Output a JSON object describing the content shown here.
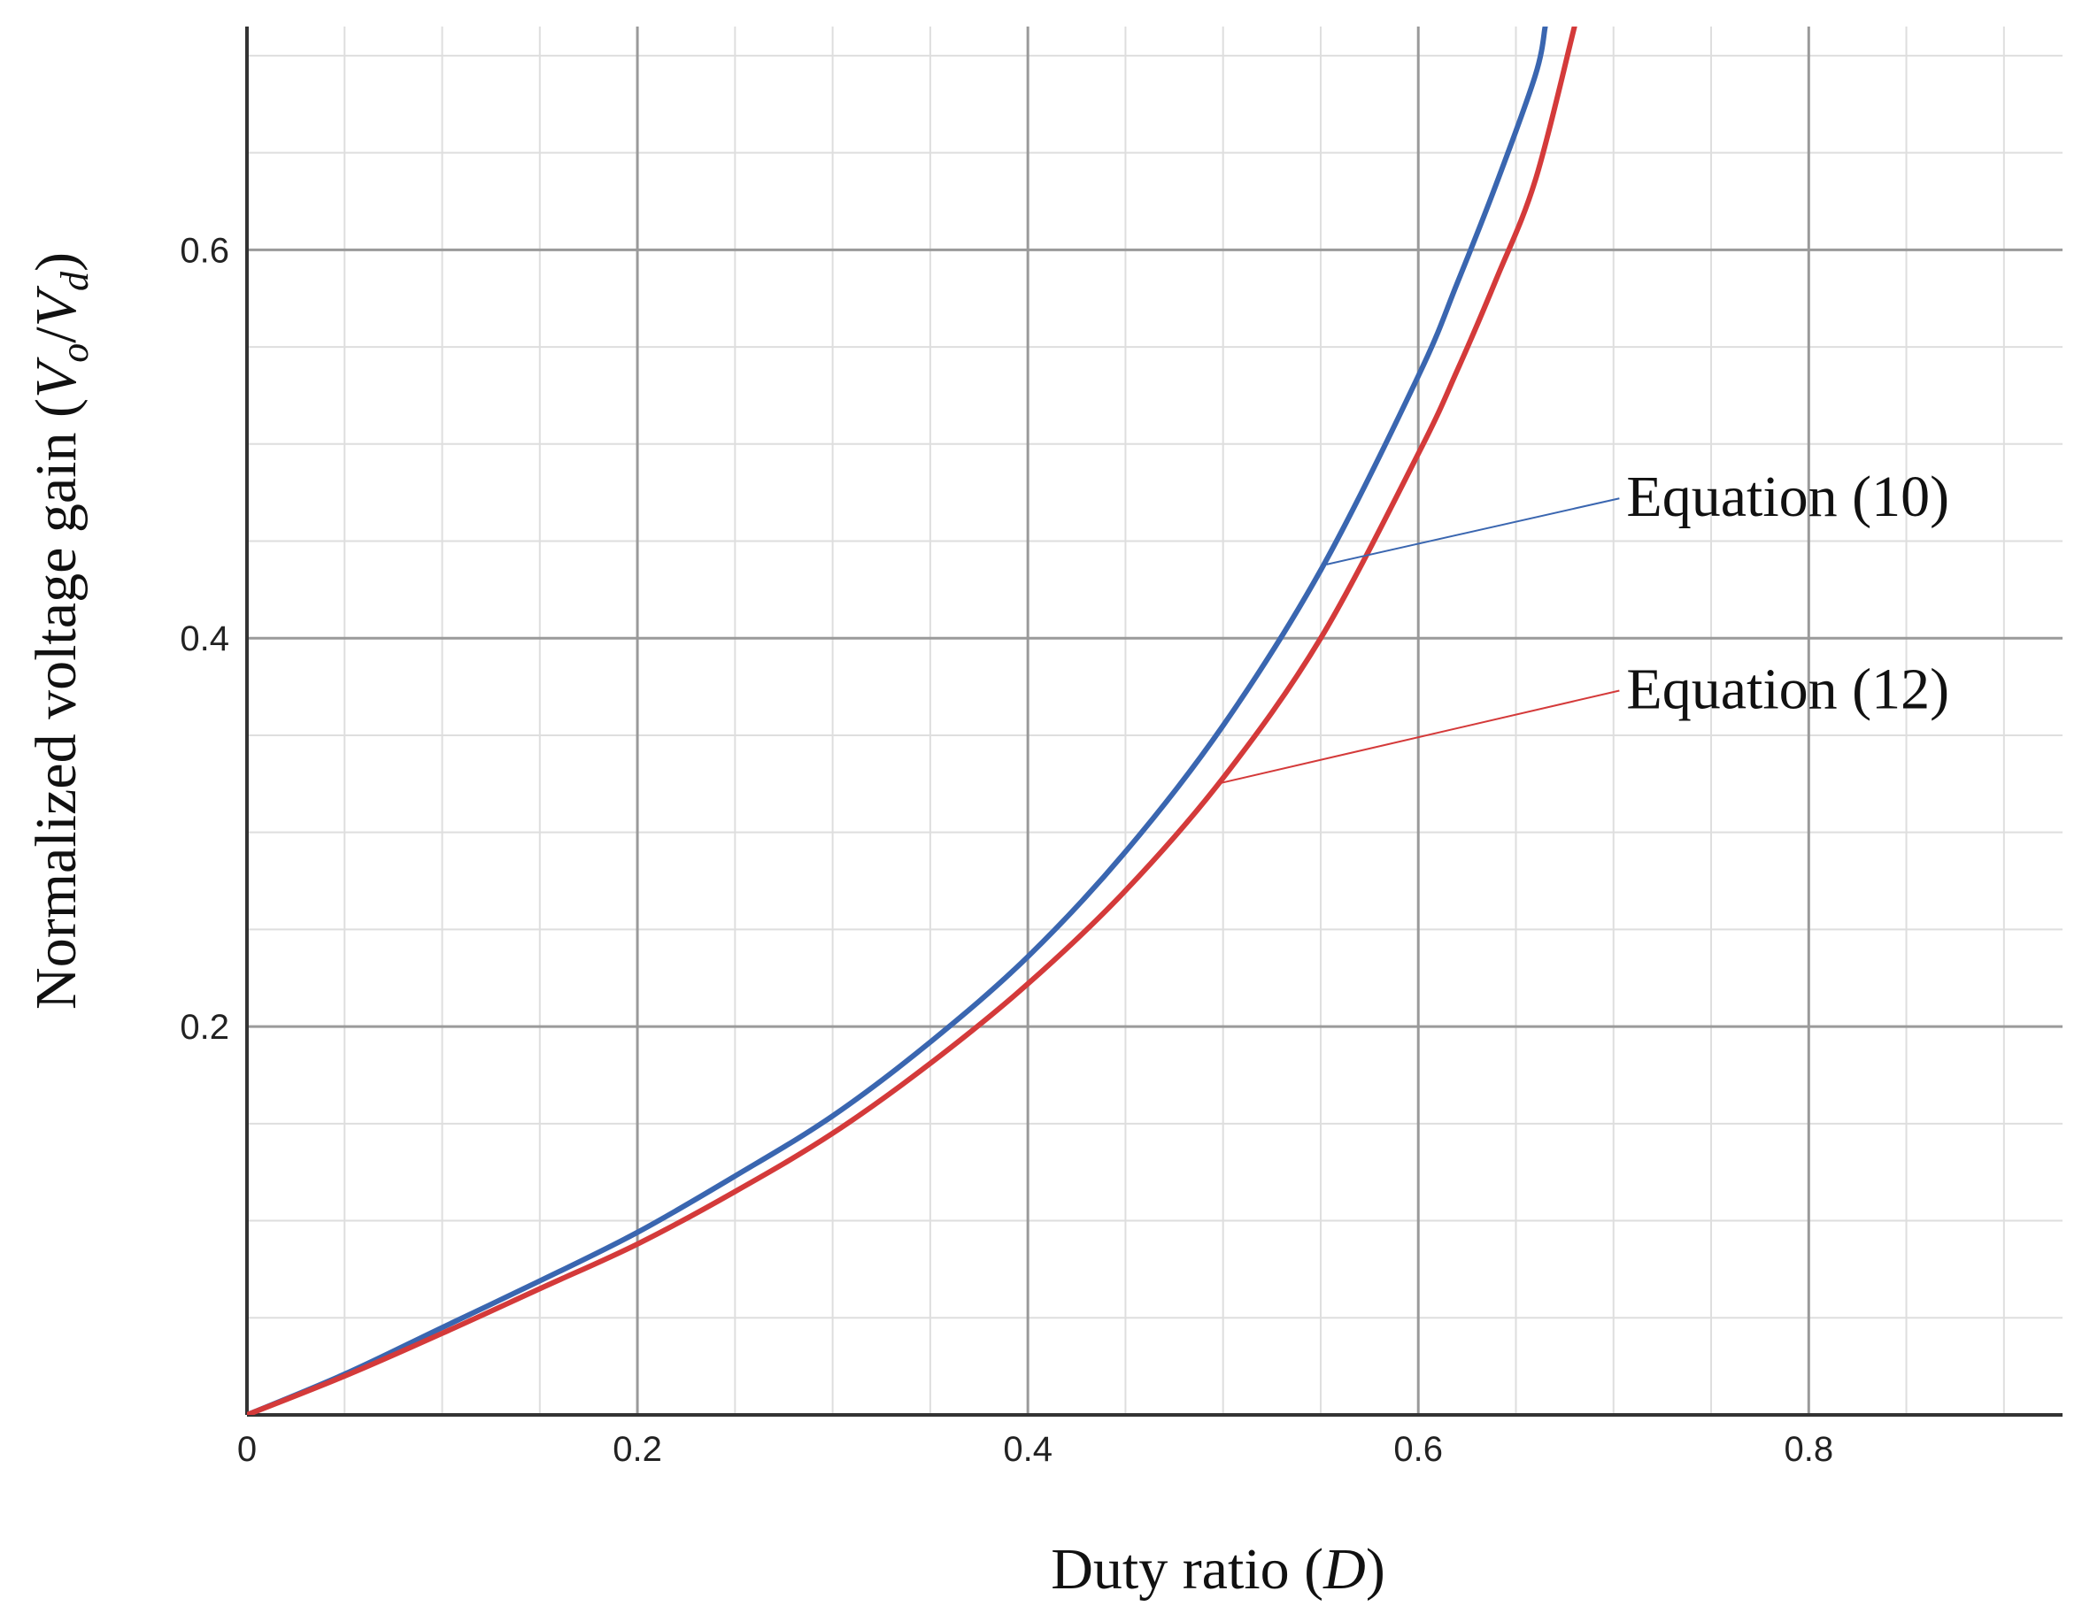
{
  "chart_data": {
    "type": "line",
    "title": "",
    "xlabel_prefix": "Duty ratio (",
    "xlabel_var": "D",
    "xlabel_suffix": ")",
    "ylabel_prefix": "Normalized voltage gain (",
    "ylabel_v1": "V",
    "ylabel_sub1": "o",
    "ylabel_slash": "/",
    "ylabel_v2": "V",
    "ylabel_sub2": "d",
    "ylabel_suffix": ")",
    "xlim": [
      0,
      0.93
    ],
    "ylim": [
      0,
      0.715
    ],
    "x_ticks": [
      {
        "value": 0,
        "label": "0"
      },
      {
        "value": 0.2,
        "label": "0.2"
      },
      {
        "value": 0.4,
        "label": "0.4"
      },
      {
        "value": 0.6,
        "label": "0.6"
      },
      {
        "value": 0.8,
        "label": "0.8"
      }
    ],
    "y_ticks": [
      {
        "value": 0.2,
        "label": "0.2"
      },
      {
        "value": 0.4,
        "label": "0.4"
      },
      {
        "value": 0.6,
        "label": "0.6"
      }
    ],
    "minor_step": 0.05,
    "grid": true,
    "series": [
      {
        "name": "Equation (10)",
        "color": "#3a66b0",
        "x": [
          0,
          0.05,
          0.1,
          0.15,
          0.2,
          0.25,
          0.3,
          0.35,
          0.4,
          0.45,
          0.5,
          0.55,
          0.6,
          0.62,
          0.64,
          0.66,
          0.665
        ],
        "y": [
          0,
          0.021,
          0.045,
          0.069,
          0.094,
          0.123,
          0.154,
          0.192,
          0.236,
          0.29,
          0.355,
          0.435,
          0.535,
          0.583,
          0.634,
          0.69,
          0.715
        ]
      },
      {
        "name": "Equation (12)",
        "color": "#d43a3a",
        "x": [
          0,
          0.05,
          0.1,
          0.15,
          0.2,
          0.25,
          0.3,
          0.35,
          0.4,
          0.45,
          0.5,
          0.55,
          0.6,
          0.62,
          0.64,
          0.66,
          0.68
        ],
        "y": [
          0,
          0.02,
          0.042,
          0.065,
          0.088,
          0.115,
          0.145,
          0.181,
          0.222,
          0.27,
          0.328,
          0.4,
          0.495,
          0.538,
          0.585,
          0.636,
          0.715
        ]
      }
    ],
    "annotations": [
      {
        "text": "Equation (10)",
        "color": "#3a66b0",
        "point": [
          0.553,
          0.438
        ],
        "label_anchor": [
          0.703,
          0.472
        ]
      },
      {
        "text": "Equation (12)",
        "color": "#d43a3a",
        "point": [
          0.497,
          0.325
        ],
        "label_anchor": [
          0.703,
          0.373
        ]
      }
    ]
  }
}
